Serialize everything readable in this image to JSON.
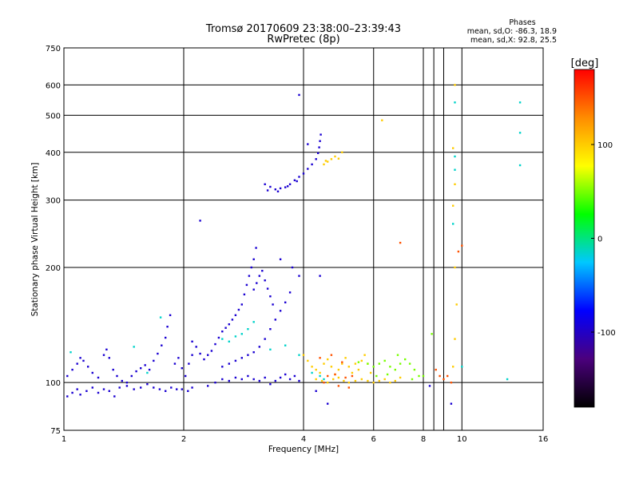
{
  "chart_data": {
    "type": "scatter",
    "title": "Tromsø 20170609 23:38:00–23:39:43",
    "subtitle": "RwPretec (8p)",
    "xlabel": "Frequency [MHz]",
    "ylabel": "Stationary phase Virtual Height [km]",
    "x_scale": "log",
    "y_scale": "log",
    "xlim": [
      1,
      16
    ],
    "ylim": [
      75,
      750
    ],
    "x_ticks": [
      1,
      2,
      4,
      6,
      8,
      10,
      16
    ],
    "y_ticks": [
      75,
      100,
      200,
      300,
      400,
      500,
      600,
      750
    ],
    "grid": true,
    "phase_stats": {
      "heading": "Phases",
      "line_o": "mean, sd,O: -86.3, 18.9",
      "line_x": "mean, sd,X:  92.8, 25.5"
    },
    "colorbar": {
      "label": "[deg]",
      "range": [
        -180,
        180
      ],
      "ticks": [
        100,
        0,
        -100
      ],
      "colors": [
        "#000000",
        "#4b007d",
        "#0000ff",
        "#00c8ff",
        "#00ff00",
        "#ffff00",
        "#ff8c00",
        "#ff0000"
      ]
    },
    "series": [
      {
        "points": [
          [
            1.02,
            92
          ],
          [
            1.05,
            94
          ],
          [
            1.08,
            96
          ],
          [
            1.1,
            93
          ],
          [
            1.14,
            95
          ],
          [
            1.18,
            97
          ],
          [
            1.22,
            94
          ],
          [
            1.26,
            96
          ],
          [
            1.3,
            95
          ],
          [
            1.34,
            92
          ],
          [
            1.38,
            97
          ],
          [
            1.44,
            98
          ],
          [
            1.5,
            96
          ],
          [
            1.56,
            97
          ],
          [
            1.62,
            99
          ],
          [
            1.68,
            97
          ],
          [
            1.74,
            96
          ],
          [
            1.8,
            95
          ],
          [
            1.86,
            97
          ],
          [
            1.92,
            96
          ],
          [
            1.98,
            96
          ],
          [
            2.05,
            95
          ],
          [
            2.1,
            97
          ],
          [
            1.02,
            104
          ],
          [
            1.05,
            108
          ],
          [
            1.08,
            112
          ],
          [
            1.1,
            116
          ],
          [
            1.12,
            114
          ],
          [
            1.15,
            110
          ],
          [
            1.18,
            106
          ],
          [
            1.22,
            103
          ],
          [
            1.26,
            118
          ],
          [
            1.28,
            122
          ],
          [
            1.3,
            116
          ],
          [
            1.33,
            108
          ],
          [
            1.36,
            104
          ],
          [
            1.4,
            101
          ],
          [
            1.44,
            100
          ],
          [
            1.48,
            104
          ],
          [
            1.52,
            107
          ],
          [
            1.56,
            109
          ],
          [
            1.6,
            111
          ],
          [
            1.64,
            108
          ],
          [
            1.68,
            114
          ],
          [
            1.72,
            119
          ],
          [
            1.76,
            125
          ],
          [
            1.8,
            131
          ],
          [
            1.82,
            140
          ],
          [
            1.85,
            150
          ],
          [
            1.9,
            112
          ],
          [
            1.94,
            116
          ],
          [
            1.98,
            109
          ],
          [
            2.02,
            104
          ],
          [
            2.06,
            112
          ],
          [
            2.1,
            118
          ],
          [
            2.1,
            128
          ],
          [
            2.15,
            124
          ],
          [
            2.2,
            119
          ],
          [
            2.25,
            115
          ],
          [
            2.3,
            118
          ],
          [
            2.35,
            121
          ],
          [
            2.4,
            126
          ],
          [
            2.45,
            131
          ],
          [
            2.5,
            136
          ],
          [
            2.55,
            139
          ],
          [
            2.6,
            142
          ],
          [
            2.65,
            146
          ],
          [
            2.7,
            150
          ],
          [
            2.75,
            155
          ],
          [
            2.8,
            160
          ],
          [
            2.84,
            170
          ],
          [
            2.88,
            180
          ],
          [
            2.92,
            190
          ],
          [
            2.96,
            200
          ],
          [
            3.0,
            210
          ],
          [
            3.04,
            225
          ],
          [
            2.5,
            110
          ],
          [
            2.6,
            112
          ],
          [
            2.7,
            114
          ],
          [
            2.8,
            116
          ],
          [
            2.9,
            118
          ],
          [
            3.0,
            120
          ],
          [
            3.1,
            124
          ],
          [
            3.2,
            130
          ],
          [
            3.3,
            138
          ],
          [
            3.4,
            146
          ],
          [
            3.5,
            154
          ],
          [
            3.6,
            162
          ],
          [
            3.7,
            172
          ],
          [
            2.3,
            98
          ],
          [
            2.4,
            100
          ],
          [
            2.5,
            102
          ],
          [
            2.6,
            101
          ],
          [
            2.7,
            103
          ],
          [
            2.8,
            102
          ],
          [
            2.9,
            104
          ],
          [
            3.0,
            102
          ],
          [
            3.1,
            101
          ],
          [
            3.2,
            103
          ],
          [
            3.3,
            99
          ],
          [
            3.4,
            101
          ],
          [
            3.5,
            103
          ],
          [
            3.6,
            105
          ],
          [
            3.7,
            102
          ],
          [
            3.8,
            104
          ],
          [
            3.9,
            101
          ],
          [
            3.0,
            175
          ],
          [
            3.05,
            182
          ],
          [
            3.1,
            190
          ],
          [
            3.15,
            196
          ],
          [
            3.2,
            185
          ],
          [
            3.25,
            176
          ],
          [
            3.3,
            168
          ],
          [
            3.35,
            160
          ],
          [
            3.2,
            330
          ],
          [
            3.3,
            325
          ],
          [
            3.4,
            320
          ],
          [
            3.5,
            322
          ],
          [
            3.6,
            324
          ],
          [
            3.7,
            330
          ],
          [
            3.8,
            338
          ],
          [
            3.9,
            345
          ],
          [
            4.0,
            352
          ],
          [
            4.1,
            362
          ],
          [
            4.2,
            372
          ],
          [
            4.3,
            384
          ],
          [
            4.35,
            398
          ],
          [
            4.38,
            412
          ],
          [
            4.4,
            428
          ],
          [
            4.42,
            445
          ],
          [
            3.25,
            318
          ],
          [
            3.45,
            316
          ],
          [
            3.65,
            326
          ],
          [
            3.85,
            336
          ],
          [
            2.2,
            265
          ],
          [
            3.9,
            565
          ],
          [
            4.1,
            420
          ],
          [
            3.75,
            200
          ],
          [
            3.5,
            210
          ],
          [
            4.4,
            190
          ],
          [
            3.9,
            190
          ],
          [
            4.3,
            95
          ],
          [
            4.6,
            88
          ],
          [
            9.4,
            88
          ],
          [
            8.3,
            98
          ]
        ],
        "phase_deg": -95
      },
      {
        "points": [
          [
            4.0,
            118
          ],
          [
            4.1,
            114
          ],
          [
            4.2,
            110
          ],
          [
            4.3,
            108
          ],
          [
            4.4,
            106
          ],
          [
            4.5,
            112
          ],
          [
            4.6,
            115
          ],
          [
            4.7,
            110
          ],
          [
            4.8,
            105
          ],
          [
            4.9,
            108
          ],
          [
            5.0,
            112
          ],
          [
            5.1,
            116
          ],
          [
            5.2,
            110
          ],
          [
            5.3,
            106
          ],
          [
            5.4,
            112
          ],
          [
            5.5,
            108
          ],
          [
            5.6,
            114
          ],
          [
            5.7,
            118
          ],
          [
            5.8,
            112
          ],
          [
            5.9,
            106
          ],
          [
            4.3,
            102
          ],
          [
            4.45,
            101
          ],
          [
            4.6,
            100
          ],
          [
            4.75,
            102
          ],
          [
            4.9,
            103
          ],
          [
            5.05,
            101
          ],
          [
            5.2,
            100
          ],
          [
            5.4,
            101
          ],
          [
            5.6,
            102
          ],
          [
            5.8,
            101
          ],
          [
            6.0,
            100
          ],
          [
            6.2,
            101
          ],
          [
            6.4,
            102
          ],
          [
            6.6,
            100
          ],
          [
            6.8,
            101
          ],
          [
            7.0,
            103
          ],
          [
            4.5,
            372
          ],
          [
            4.6,
            378
          ],
          [
            4.7,
            384
          ],
          [
            4.8,
            390
          ],
          [
            4.9,
            385
          ],
          [
            4.55,
            380
          ],
          [
            5.0,
            400
          ],
          [
            6.3,
            485
          ],
          [
            9.6,
            600
          ],
          [
            9.5,
            410
          ],
          [
            9.6,
            330
          ],
          [
            9.5,
            290
          ],
          [
            9.6,
            200
          ],
          [
            9.7,
            160
          ],
          [
            9.6,
            130
          ],
          [
            9.5,
            110
          ]
        ],
        "phase_deg": 100
      },
      {
        "points": [
          [
            4.6,
            104
          ],
          [
            4.8,
            105
          ],
          [
            5.1,
            103
          ],
          [
            5.3,
            104
          ],
          [
            4.4,
            116
          ],
          [
            4.7,
            118
          ],
          [
            5.0,
            113
          ],
          [
            4.9,
            98
          ],
          [
            5.2,
            97
          ],
          [
            4.5,
            100
          ],
          [
            7.0,
            232
          ],
          [
            10.0,
            228
          ],
          [
            9.8,
            220
          ],
          [
            8.6,
            108
          ],
          [
            8.8,
            104
          ],
          [
            9.0,
            102
          ],
          [
            9.2,
            104
          ],
          [
            9.4,
            100
          ]
        ],
        "phase_deg": 150
      },
      {
        "points": [
          [
            6.0,
            110
          ],
          [
            6.2,
            112
          ],
          [
            6.4,
            114
          ],
          [
            6.6,
            110
          ],
          [
            6.8,
            108
          ],
          [
            7.0,
            112
          ],
          [
            7.2,
            115
          ],
          [
            7.4,
            112
          ],
          [
            7.6,
            108
          ],
          [
            7.8,
            104
          ],
          [
            8.0,
            104
          ],
          [
            5.5,
            113
          ],
          [
            5.8,
            112
          ],
          [
            6.1,
            104
          ],
          [
            6.5,
            105
          ],
          [
            7.5,
            102
          ],
          [
            6.9,
            118
          ],
          [
            8.4,
            134
          ]
        ],
        "phase_deg": 50
      },
      {
        "points": [
          [
            1.04,
            120
          ],
          [
            1.5,
            124
          ],
          [
            1.62,
            106
          ],
          [
            1.75,
            148
          ],
          [
            2.5,
            130
          ],
          [
            2.6,
            128
          ],
          [
            2.7,
            132
          ],
          [
            2.8,
            134
          ],
          [
            2.9,
            138
          ],
          [
            3.0,
            144
          ],
          [
            3.3,
            122
          ],
          [
            3.6,
            125
          ],
          [
            3.9,
            118
          ],
          [
            4.2,
            106
          ],
          [
            4.4,
            104
          ],
          [
            4.5,
            102
          ],
          [
            9.6,
            540
          ],
          [
            14.0,
            540
          ],
          [
            14.0,
            450
          ],
          [
            9.6,
            390
          ],
          [
            9.6,
            360
          ],
          [
            14.0,
            370
          ],
          [
            9.5,
            260
          ],
          [
            13.0,
            102
          ],
          [
            10.0,
            110
          ]
        ],
        "phase_deg": -15
      }
    ]
  }
}
